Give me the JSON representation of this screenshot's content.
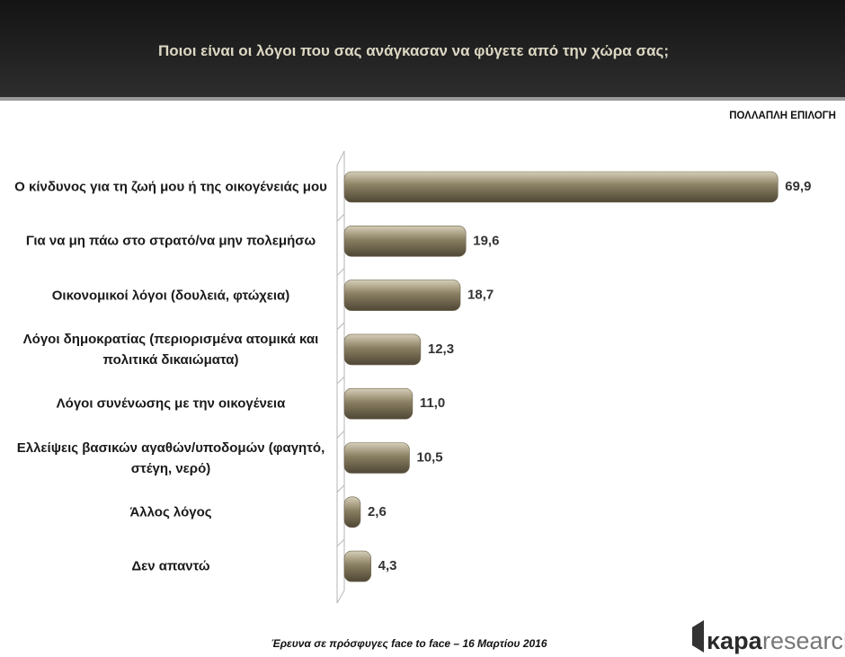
{
  "chart_data": {
    "type": "bar",
    "orientation": "horizontal",
    "title": "Ποιοι είναι οι λόγοι που σας ανάγκασαν να φύγετε από την χώρα σας;",
    "subtitle": "ΠΟΛΛΑΠΛΗ ΕΠΙΛΟΓΗ",
    "categories": [
      "Ο κίνδυνος για τη ζωή μου ή της οικογένειάς μου",
      "Για να μη πάω στο στρατό/να μην πολεμήσω",
      "Οικονομικοί λόγοι (δουλειά, φτώχεια)",
      "Λόγοι δημοκρατίας (περιορισμένα ατομικά και πολιτικά δικαιώματα)",
      "Λόγοι συνένωσης με την οικογένεια",
      "Ελλείψεις βασικών αγαθών/υποδομών (φαγητό, στέγη, νερό)",
      "Άλλος λόγος",
      "Δεν απαντώ"
    ],
    "values": [
      69.9,
      19.6,
      18.7,
      12.3,
      11.0,
      10.5,
      2.6,
      4.3
    ],
    "value_labels": [
      "69,9",
      "19,6",
      "18,7",
      "12,3",
      "11,0",
      "10,5",
      "2,6",
      "4,3"
    ],
    "color": "#8a7f62",
    "footnote": "Έρευνα σε πρόσφυγες face to face – 16 Μαρτίου 2016",
    "logo": {
      "part1": "κapa",
      "part2": "research"
    }
  }
}
